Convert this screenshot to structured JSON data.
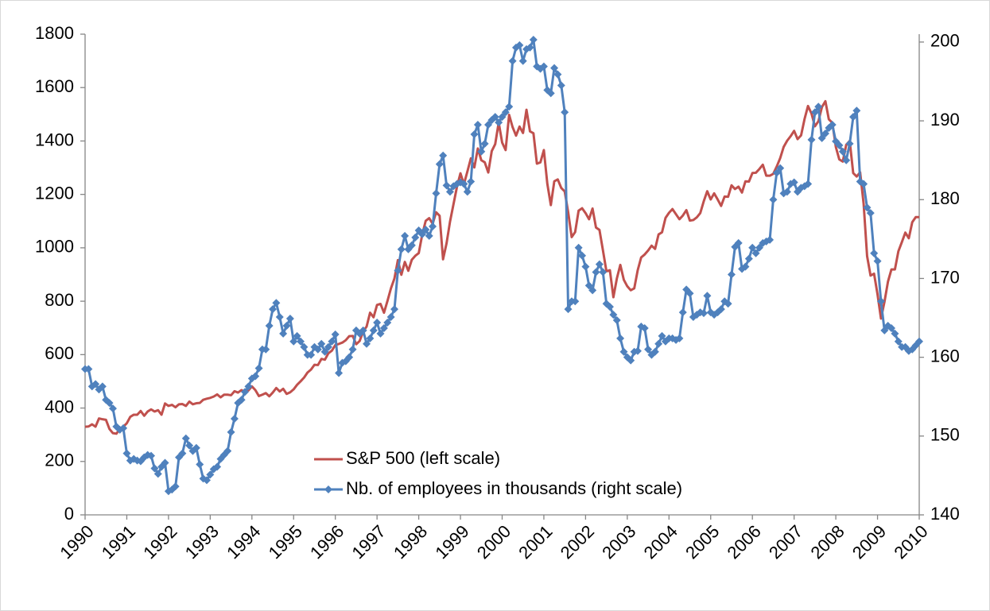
{
  "chart_data": {
    "type": "line",
    "legend": "lower center",
    "xlim": [
      1990,
      2010
    ],
    "xticks": [
      1990,
      1991,
      1992,
      1993,
      1994,
      1995,
      1996,
      1997,
      1998,
      1999,
      2000,
      2001,
      2002,
      2003,
      2004,
      2005,
      2006,
      2007,
      2008,
      2009,
      2010
    ],
    "ylim": [
      0,
      1800
    ],
    "yticks": [
      0,
      200,
      400,
      600,
      800,
      1000,
      1200,
      1400,
      1600,
      1800
    ],
    "y2lim": [
      140,
      201
    ],
    "y2ticks": [
      140,
      150,
      160,
      170,
      180,
      190,
      200
    ],
    "x": [
      1990,
      1990.083,
      1990.167,
      1990.25,
      1990.333,
      1990.417,
      1990.5,
      1990.583,
      1990.667,
      1990.75,
      1990.833,
      1990.917,
      1991,
      1991.083,
      1991.167,
      1991.25,
      1991.333,
      1991.417,
      1991.5,
      1991.583,
      1991.667,
      1991.75,
      1991.833,
      1991.917,
      1992,
      1992.083,
      1992.167,
      1992.25,
      1992.333,
      1992.417,
      1992.5,
      1992.583,
      1992.667,
      1992.75,
      1992.833,
      1992.917,
      1993,
      1993.083,
      1993.167,
      1993.25,
      1993.333,
      1993.417,
      1993.5,
      1993.583,
      1993.667,
      1993.75,
      1993.833,
      1993.917,
      1994,
      1994.083,
      1994.167,
      1994.25,
      1994.333,
      1994.417,
      1994.5,
      1994.583,
      1994.667,
      1994.75,
      1994.833,
      1994.917,
      1995,
      1995.083,
      1995.167,
      1995.25,
      1995.333,
      1995.417,
      1995.5,
      1995.583,
      1995.667,
      1995.75,
      1995.833,
      1995.917,
      1996,
      1996.083,
      1996.167,
      1996.25,
      1996.333,
      1996.417,
      1996.5,
      1996.583,
      1996.667,
      1996.75,
      1996.833,
      1996.917,
      1997,
      1997.083,
      1997.167,
      1997.25,
      1997.333,
      1997.417,
      1997.5,
      1997.583,
      1997.667,
      1997.75,
      1997.833,
      1997.917,
      1998,
      1998.083,
      1998.167,
      1998.25,
      1998.333,
      1998.417,
      1998.5,
      1998.583,
      1998.667,
      1998.75,
      1998.833,
      1998.917,
      1999,
      1999.083,
      1999.167,
      1999.25,
      1999.333,
      1999.417,
      1999.5,
      1999.583,
      1999.667,
      1999.75,
      1999.833,
      1999.917,
      2000,
      2000.083,
      2000.167,
      2000.25,
      2000.333,
      2000.417,
      2000.5,
      2000.583,
      2000.667,
      2000.75,
      2000.833,
      2000.917,
      2001,
      2001.083,
      2001.167,
      2001.25,
      2001.333,
      2001.417,
      2001.5,
      2001.583,
      2001.667,
      2001.75,
      2001.833,
      2001.917,
      2002,
      2002.083,
      2002.167,
      2002.25,
      2002.333,
      2002.417,
      2002.5,
      2002.583,
      2002.667,
      2002.75,
      2002.833,
      2002.917,
      2003,
      2003.083,
      2003.167,
      2003.25,
      2003.333,
      2003.417,
      2003.5,
      2003.583,
      2003.667,
      2003.75,
      2003.833,
      2003.917,
      2004,
      2004.083,
      2004.167,
      2004.25,
      2004.333,
      2004.417,
      2004.5,
      2004.583,
      2004.667,
      2004.75,
      2004.833,
      2004.917,
      2005,
      2005.083,
      2005.167,
      2005.25,
      2005.333,
      2005.417,
      2005.5,
      2005.583,
      2005.667,
      2005.75,
      2005.833,
      2005.917,
      2006,
      2006.083,
      2006.167,
      2006.25,
      2006.333,
      2006.417,
      2006.5,
      2006.583,
      2006.667,
      2006.75,
      2006.833,
      2006.917,
      2007,
      2007.083,
      2007.167,
      2007.25,
      2007.333,
      2007.417,
      2007.5,
      2007.583,
      2007.667,
      2007.75,
      2007.833,
      2007.917,
      2008,
      2008.083,
      2008.167,
      2008.25,
      2008.333,
      2008.417,
      2008.5,
      2008.583,
      2008.667,
      2008.75,
      2008.833,
      2008.917,
      2009,
      2009.083,
      2009.167,
      2009.25,
      2009.333,
      2009.417,
      2009.5,
      2009.583,
      2009.667,
      2009.75,
      2009.833,
      2009.917,
      2010
    ],
    "series": [
      {
        "name": "S&P 500 (left scale)",
        "color": "#c0504d",
        "markers": false,
        "values": [
          330,
          331,
          339,
          330,
          361,
          358,
          356,
          322,
          306,
          304,
          322,
          330,
          343,
          367,
          375,
          375,
          389,
          371,
          387,
          395,
          387,
          392,
          375,
          417,
          408,
          412,
          403,
          414,
          415,
          408,
          424,
          414,
          418,
          419,
          431,
          435,
          438,
          443,
          451,
          440,
          450,
          450,
          448,
          463,
          458,
          467,
          461,
          466,
          481,
          467,
          445,
          450,
          456,
          444,
          458,
          475,
          462,
          472,
          453,
          459,
          470,
          487,
          500,
          514,
          533,
          544,
          562,
          561,
          584,
          581,
          605,
          615,
          636,
          640,
          645,
          654,
          669,
          670,
          639,
          651,
          687,
          705,
          757,
          740,
          786,
          790,
          757,
          801,
          848,
          885,
          954,
          899,
          947,
          914,
          955,
          970,
          980,
          1049,
          1101,
          1111,
          1090,
          1133,
          1120,
          957,
          1017,
          1098,
          1163,
          1229,
          1279,
          1238,
          1286,
          1335,
          1301,
          1372,
          1328,
          1320,
          1282,
          1362,
          1388,
          1469,
          1394,
          1366,
          1498,
          1452,
          1420,
          1454,
          1430,
          1517,
          1436,
          1429,
          1315,
          1320,
          1366,
          1240,
          1160,
          1249,
          1256,
          1224,
          1211,
          1133,
          1040,
          1059,
          1139,
          1148,
          1130,
          1107,
          1147,
          1076,
          1067,
          990,
          912,
          916,
          815,
          885,
          936,
          880,
          856,
          841,
          848,
          916,
          964,
          975,
          990,
          1008,
          996,
          1050,
          1058,
          1112,
          1131,
          1145,
          1126,
          1107,
          1121,
          1141,
          1102,
          1104,
          1114,
          1130,
          1174,
          1212,
          1181,
          1204,
          1181,
          1157,
          1192,
          1191,
          1234,
          1220,
          1229,
          1207,
          1249,
          1248,
          1280,
          1281,
          1295,
          1311,
          1270,
          1270,
          1277,
          1304,
          1336,
          1378,
          1401,
          1418,
          1438,
          1407,
          1421,
          1482,
          1531,
          1503,
          1455,
          1474,
          1527,
          1549,
          1481,
          1468,
          1378,
          1331,
          1323,
          1386,
          1400,
          1280,
          1267,
          1283,
          1165,
          969,
          896,
          903,
          826,
          735,
          798,
          873,
          919,
          919,
          987,
          1021,
          1057,
          1036,
          1096,
          1115,
          1115
        ]
      },
      {
        "name": "Nb. of employees in thousands (right scale)",
        "color": "#4f81bd",
        "axis": "y2",
        "markers": true,
        "values": [
          158.5,
          158.5,
          156.3,
          156.6,
          155.9,
          156.3,
          154.6,
          154.2,
          153.5,
          151.2,
          150.8,
          151.0,
          147.8,
          146.9,
          147.1,
          146.9,
          146.8,
          147.3,
          147.6,
          147.5,
          145.9,
          145.2,
          146.1,
          146.6,
          143.0,
          143.2,
          143.6,
          147.3,
          147.8,
          149.7,
          148.8,
          148.1,
          148.5,
          146.4,
          144.6,
          144.4,
          145.1,
          145.8,
          146.1,
          147.1,
          147.6,
          148.1,
          150.5,
          152.2,
          154.2,
          154.6,
          155.6,
          156.3,
          157.3,
          157.6,
          158.6,
          161.0,
          161.0,
          164.0,
          166.1,
          166.9,
          165.1,
          163.0,
          164.0,
          164.9,
          162.0,
          162.7,
          162.0,
          161.3,
          160.3,
          160.3,
          161.3,
          161.0,
          161.7,
          160.7,
          161.3,
          162.0,
          162.9,
          158.0,
          159.3,
          159.5,
          160.0,
          161.0,
          163.4,
          163.0,
          163.4,
          161.7,
          162.4,
          163.4,
          164.4,
          163.0,
          163.7,
          164.4,
          165.1,
          166.1,
          171.0,
          173.7,
          175.4,
          173.7,
          174.2,
          175.2,
          176.1,
          175.6,
          176.2,
          175.4,
          176.6,
          180.8,
          184.5,
          185.6,
          181.8,
          181.0,
          181.7,
          182.0,
          182.2,
          182.0,
          181.0,
          182.3,
          188.3,
          189.5,
          186.1,
          187.1,
          189.5,
          190.1,
          190.5,
          189.8,
          190.5,
          191.1,
          191.8,
          197.6,
          199.3,
          199.6,
          197.6,
          199.1,
          199.3,
          200.3,
          196.9,
          196.6,
          196.9,
          193.9,
          193.5,
          196.7,
          195.9,
          194.5,
          191.1,
          166.1,
          167.1,
          167.1,
          173.9,
          172.9,
          171.5,
          169.1,
          168.5,
          170.8,
          171.8,
          170.8,
          166.8,
          166.4,
          165.4,
          164.7,
          162.4,
          160.7,
          160.0,
          159.6,
          160.7,
          160.8,
          163.9,
          163.7,
          161.0,
          160.3,
          160.7,
          161.7,
          162.7,
          162.0,
          162.4,
          162.4,
          162.2,
          162.4,
          165.7,
          168.6,
          168.1,
          165.1,
          165.4,
          165.7,
          165.6,
          167.8,
          165.7,
          165.4,
          165.7,
          166.1,
          167.1,
          166.8,
          170.5,
          174.0,
          174.5,
          171.2,
          171.5,
          172.5,
          173.9,
          173.2,
          173.9,
          174.5,
          174.7,
          174.9,
          180.0,
          183.4,
          184.0,
          180.8,
          181.0,
          182.0,
          182.2,
          181.0,
          181.5,
          181.7,
          182.0,
          187.6,
          191.1,
          191.8,
          187.8,
          188.4,
          189.1,
          189.5,
          187.4,
          186.9,
          186.1,
          185.0,
          187.1,
          190.5,
          191.3,
          182.3,
          182.0,
          179.0,
          178.3,
          173.2,
          172.2,
          167.1,
          163.4,
          164.0,
          163.7,
          163.0,
          162.0,
          161.3,
          161.3,
          160.8,
          161.0,
          161.5,
          162.0
        ]
      }
    ]
  }
}
